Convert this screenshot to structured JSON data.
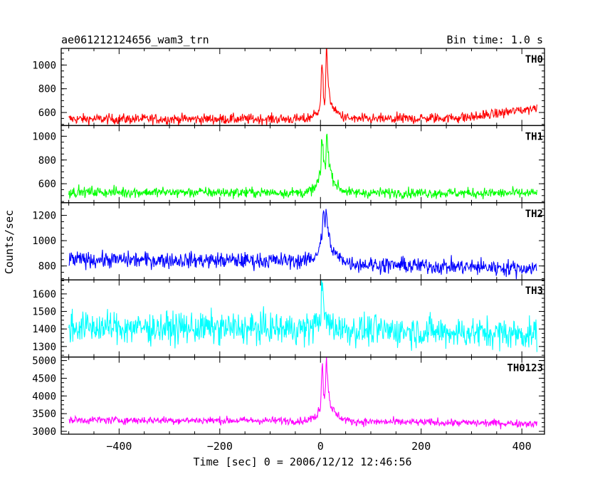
{
  "chart_data": {
    "type": "line",
    "title_left": "ae061212124656_wam3_trn",
    "title_right": "Bin time: 1.0 s",
    "xlabel": "Time [sec] 0 = 2006/12/12 12:46:56",
    "ylabel": "Counts/sec",
    "xlim": [
      -515,
      445
    ],
    "x_range": [
      -500,
      430
    ],
    "x_ticks": [
      -400,
      -200,
      0,
      200,
      400
    ],
    "bin_time_s": 1.0,
    "grid": false,
    "panels": [
      {
        "name": "TH0",
        "color": "#ff0000",
        "ylim": [
          490,
          1140
        ],
        "y_ticks": [
          600,
          800,
          1000
        ],
        "baseline": 540,
        "noise": 22,
        "end_trend": [
          [
            -500,
            545
          ],
          [
            150,
            545
          ],
          [
            300,
            560
          ],
          [
            430,
            640
          ]
        ],
        "burst": [
          [
            -30,
            0
          ],
          [
            -10,
            40
          ],
          [
            0,
            120
          ],
          [
            3,
            520
          ],
          [
            6,
            180
          ],
          [
            9,
            150
          ],
          [
            12,
            620
          ],
          [
            15,
            280
          ],
          [
            20,
            150
          ],
          [
            30,
            60
          ],
          [
            45,
            20
          ],
          [
            60,
            0
          ]
        ]
      },
      {
        "name": "TH1",
        "color": "#00ff00",
        "ylim": [
          440,
          1090
        ],
        "y_ticks": [
          600,
          800,
          1000
        ],
        "baseline": 530,
        "noise": 22,
        "end_trend": [
          [
            -500,
            530
          ],
          [
            430,
            520
          ]
        ],
        "burst": [
          [
            -30,
            0
          ],
          [
            -10,
            40
          ],
          [
            0,
            150
          ],
          [
            3,
            500
          ],
          [
            6,
            280
          ],
          [
            10,
            200
          ],
          [
            13,
            550
          ],
          [
            16,
            300
          ],
          [
            22,
            150
          ],
          [
            32,
            60
          ],
          [
            45,
            20
          ],
          [
            60,
            0
          ]
        ]
      },
      {
        "name": "TH2",
        "color": "#0000ff",
        "ylim": [
          690,
          1300
        ],
        "y_ticks": [
          800,
          1000,
          1200
        ],
        "baseline": 840,
        "noise": 32,
        "end_trend": [
          [
            -500,
            850
          ],
          [
            0,
            840
          ],
          [
            100,
            810
          ],
          [
            430,
            780
          ]
        ],
        "burst": [
          [
            -30,
            0
          ],
          [
            -10,
            40
          ],
          [
            0,
            120
          ],
          [
            3,
            200
          ],
          [
            6,
            460
          ],
          [
            9,
            240
          ],
          [
            12,
            430
          ],
          [
            16,
            200
          ],
          [
            22,
            100
          ],
          [
            35,
            40
          ],
          [
            60,
            0
          ]
        ]
      },
      {
        "name": "TH3",
        "color": "#00ffff",
        "ylim": [
          1240,
          1680
        ],
        "y_ticks": [
          1300,
          1400,
          1500,
          1600
        ],
        "baseline": 1400,
        "noise": 45,
        "end_trend": [
          [
            -500,
            1410
          ],
          [
            0,
            1400
          ],
          [
            430,
            1370
          ]
        ],
        "burst": [
          [
            -20,
            0
          ],
          [
            0,
            60
          ],
          [
            3,
            260
          ],
          [
            6,
            120
          ],
          [
            10,
            60
          ],
          [
            20,
            20
          ],
          [
            40,
            0
          ]
        ]
      },
      {
        "name": "TH0123",
        "color": "#ff00ff",
        "ylim": [
          2920,
          5100
        ],
        "y_ticks": [
          3000,
          3500,
          4000,
          4500,
          5000
        ],
        "baseline": 3300,
        "noise": 55,
        "end_trend": [
          [
            -500,
            3320
          ],
          [
            0,
            3300
          ],
          [
            100,
            3270
          ],
          [
            430,
            3220
          ]
        ],
        "burst": [
          [
            -30,
            0
          ],
          [
            -10,
            100
          ],
          [
            0,
            400
          ],
          [
            3,
            1750
          ],
          [
            6,
            900
          ],
          [
            9,
            700
          ],
          [
            12,
            1800
          ],
          [
            15,
            1000
          ],
          [
            20,
            450
          ],
          [
            30,
            200
          ],
          [
            45,
            60
          ],
          [
            60,
            0
          ]
        ]
      }
    ]
  }
}
